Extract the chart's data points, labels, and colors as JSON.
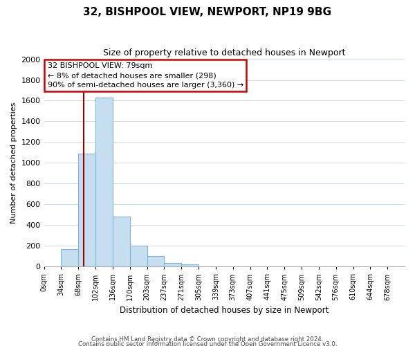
{
  "title": "32, BISHPOOL VIEW, NEWPORT, NP19 9BG",
  "subtitle": "Size of property relative to detached houses in Newport",
  "xlabel": "Distribution of detached houses by size in Newport",
  "ylabel": "Number of detached properties",
  "bar_labels": [
    "0sqm",
    "34sqm",
    "68sqm",
    "102sqm",
    "136sqm",
    "170sqm",
    "203sqm",
    "237sqm",
    "271sqm",
    "305sqm",
    "339sqm",
    "373sqm",
    "407sqm",
    "441sqm",
    "475sqm",
    "509sqm",
    "542sqm",
    "576sqm",
    "610sqm",
    "644sqm",
    "678sqm"
  ],
  "bar_values": [
    0,
    170,
    1090,
    1630,
    480,
    200,
    100,
    35,
    20,
    0,
    0,
    0,
    0,
    0,
    0,
    0,
    0,
    0,
    0,
    0,
    0
  ],
  "bar_color": "#c5dff0",
  "bar_edge_color": "#7fb5d5",
  "vline_color": "#990000",
  "vline_x": 2.32,
  "ylim": [
    0,
    2000
  ],
  "yticks": [
    0,
    200,
    400,
    600,
    800,
    1000,
    1200,
    1400,
    1600,
    1800,
    2000
  ],
  "annotation_title": "32 BISHPOOL VIEW: 79sqm",
  "annotation_line1": "← 8% of detached houses are smaller (298)",
  "annotation_line2": "90% of semi-detached houses are larger (3,360) →",
  "annotation_box_color": "#ffffff",
  "annotation_box_edge": "#cc0000",
  "footer_line1": "Contains HM Land Registry data © Crown copyright and database right 2024.",
  "footer_line2": "Contains public sector information licensed under the Open Government Licence v3.0.",
  "background_color": "#ffffff",
  "grid_color": "#d0dde8"
}
